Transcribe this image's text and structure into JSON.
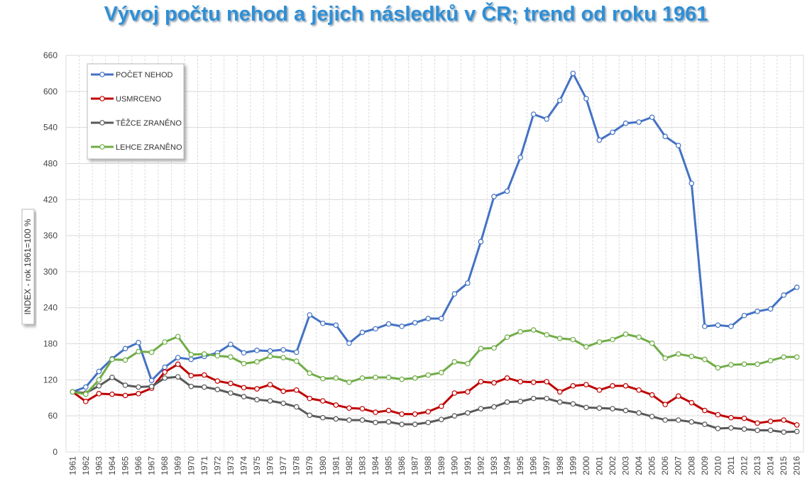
{
  "chart_data": {
    "type": "line",
    "title": "Vývoj počtu nehod a jejich následků v ČR; trend od roku 1961",
    "ylabel": "INDEX - rok 1961=100 %",
    "xlabel": "",
    "ylim": [
      0,
      660
    ],
    "yticks": [
      0,
      60,
      120,
      180,
      240,
      300,
      360,
      420,
      480,
      540,
      600,
      660
    ],
    "grid": true,
    "legend_position": "top-left",
    "x": [
      "1961",
      "1962",
      "1963",
      "1964",
      "1965",
      "1966",
      "1967",
      "1968",
      "1969",
      "1970",
      "1971",
      "1972",
      "1973",
      "1974",
      "1975",
      "1976",
      "1977",
      "1978",
      "1979",
      "1980",
      "1981",
      "1982",
      "1983",
      "1984",
      "1985",
      "1986",
      "1987",
      "1988",
      "1989",
      "1990",
      "1991",
      "1992",
      "1993",
      "1994",
      "1995",
      "1996",
      "1997",
      "1998",
      "1999",
      "2000",
      "2001",
      "2002",
      "2003",
      "2004",
      "2005",
      "2006",
      "2007",
      "2008",
      "2009",
      "2010",
      "2011",
      "2012",
      "2013",
      "2014",
      "2015",
      "2016"
    ],
    "series": [
      {
        "name": "POČET NEHOD",
        "color": "#4472c4",
        "values": [
          100,
          108,
          134,
          155,
          172,
          182,
          119,
          141,
          157,
          154,
          159,
          165,
          179,
          165,
          169,
          168,
          170,
          166,
          228,
          214,
          211,
          181,
          199,
          205,
          213,
          209,
          215,
          222,
          222,
          263,
          281,
          350,
          425,
          434,
          490,
          562,
          554,
          585,
          630,
          588,
          519,
          532,
          547,
          549,
          557,
          525,
          510,
          447,
          209,
          211,
          209,
          227,
          234,
          238,
          261,
          274
        ]
      },
      {
        "name": "USMRCENO",
        "color": "#c00000",
        "values": [
          100,
          84,
          97,
          96,
          94,
          97,
          106,
          133,
          146,
          127,
          128,
          118,
          114,
          107,
          105,
          112,
          101,
          103,
          89,
          85,
          78,
          73,
          72,
          66,
          69,
          63,
          63,
          67,
          76,
          98,
          100,
          117,
          115,
          123,
          117,
          116,
          117,
          100,
          110,
          112,
          103,
          110,
          110,
          103,
          95,
          79,
          93,
          82,
          69,
          62,
          57,
          56,
          48,
          51,
          53,
          45
        ]
      },
      {
        "name": "TĚŽCE ZRANĚNO",
        "color": "#595959",
        "values": [
          100,
          98,
          110,
          124,
          111,
          108,
          109,
          123,
          125,
          109,
          108,
          104,
          98,
          92,
          87,
          85,
          81,
          75,
          61,
          57,
          55,
          53,
          53,
          49,
          50,
          46,
          46,
          49,
          54,
          60,
          65,
          72,
          75,
          83,
          84,
          89,
          89,
          83,
          80,
          74,
          73,
          72,
          69,
          65,
          59,
          53,
          53,
          50,
          46,
          39,
          40,
          38,
          36,
          36,
          33,
          34
        ]
      },
      {
        "name": "LEHCE ZRANĚNO",
        "color": "#70ad47",
        "values": [
          100,
          96,
          120,
          154,
          153,
          167,
          166,
          183,
          192,
          162,
          163,
          160,
          158,
          147,
          150,
          159,
          157,
          151,
          131,
          122,
          123,
          116,
          123,
          124,
          124,
          121,
          123,
          128,
          132,
          150,
          147,
          172,
          173,
          191,
          200,
          203,
          195,
          189,
          187,
          175,
          183,
          187,
          196,
          191,
          181,
          156,
          163,
          159,
          154,
          140,
          145,
          146,
          146,
          152,
          158,
          158
        ]
      }
    ]
  }
}
